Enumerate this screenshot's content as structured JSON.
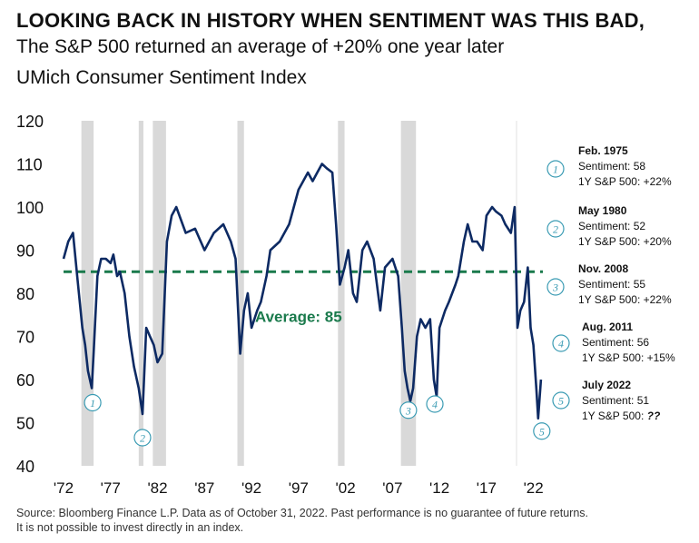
{
  "header": {
    "title": "LOOKING BACK IN HISTORY WHEN SENTIMENT WAS THIS BAD,",
    "subtitle": "The S&P 500 returned an average of +20% one year later",
    "chart_name": "UMich Consumer Sentiment Index"
  },
  "footer": {
    "source_line1": "Source: Bloomberg Finance L.P. Data as of October 31, 2022. Past performance is no guarantee of future returns.",
    "source_line2": "It is not possible to invest directly in an index."
  },
  "colors": {
    "line": "#0d2a63",
    "average": "#1a7a4c",
    "recession": "#d9d9d9",
    "marker": "#3a9bb3"
  },
  "chart_data": {
    "type": "line",
    "title": "UMich Consumer Sentiment Index",
    "ylim": [
      40,
      120
    ],
    "y_ticks": [
      40,
      50,
      60,
      70,
      80,
      90,
      100,
      110,
      120
    ],
    "x_ticks": [
      "'72",
      "'77",
      "'82",
      "'87",
      "'92",
      "'97",
      "'02",
      "'07",
      "'12",
      "'17",
      "'22"
    ],
    "x_tick_years": [
      1972,
      1977,
      1982,
      1987,
      1992,
      1997,
      2002,
      2007,
      2012,
      2017,
      2022
    ],
    "xlim": [
      1972,
      2023
    ],
    "average": {
      "value": 85,
      "label": "Average: 85"
    },
    "recessions": [
      [
        1973.9,
        1975.2
      ],
      [
        1980.0,
        1980.5
      ],
      [
        1981.5,
        1982.9
      ],
      [
        1990.5,
        1991.2
      ],
      [
        2001.2,
        2001.9
      ],
      [
        2007.9,
        2009.5
      ]
    ],
    "series": [
      {
        "x": [
          1972.0,
          1972.5,
          1973.0,
          1973.5,
          1974.0,
          1974.3,
          1974.6,
          1975.0,
          1975.2,
          1975.6,
          1976.0,
          1976.5,
          1977.0,
          1977.3,
          1977.7,
          1978.0,
          1978.5,
          1979.0,
          1979.5,
          1980.0,
          1980.4,
          1980.8,
          1981.2,
          1981.6,
          1982.0,
          1982.5,
          1983.0,
          1983.5,
          1984.0,
          1985.0,
          1986.0,
          1987.0,
          1988.0,
          1989.0,
          1989.8,
          1990.3,
          1990.8,
          1991.2,
          1991.6,
          1992.0,
          1992.6,
          1993.0,
          1993.6,
          1994.0,
          1995.0,
          1996.0,
          1997.0,
          1997.5,
          1998.0,
          1998.5,
          1999.0,
          1999.5,
          2000.0,
          2000.6,
          2001.0,
          2001.4,
          2001.9,
          2002.3,
          2002.8,
          2003.2,
          2003.8,
          2004.3,
          2005.0,
          2005.7,
          2006.2,
          2007.0,
          2007.6,
          2008.0,
          2008.3,
          2008.6,
          2008.9,
          2009.2,
          2009.6,
          2010.0,
          2010.5,
          2011.0,
          2011.4,
          2011.7,
          2012.0,
          2012.6,
          2013.0,
          2013.7,
          2014.0,
          2014.6,
          2015.0,
          2015.5,
          2016.0,
          2016.6,
          2017.0,
          2017.6,
          2018.0,
          2018.6,
          2019.0,
          2019.6,
          2020.0,
          2020.3,
          2020.6,
          2021.0,
          2021.4,
          2021.7,
          2022.0,
          2022.3,
          2022.5,
          2022.8
        ],
        "values": [
          88,
          92,
          94,
          83,
          72,
          68,
          62,
          58,
          66,
          84,
          88,
          88,
          87,
          89,
          84,
          85,
          80,
          70,
          63,
          58,
          52,
          72,
          70,
          68,
          64,
          66,
          92,
          98,
          100,
          94,
          95,
          90,
          94,
          96,
          92,
          88,
          66,
          76,
          80,
          72,
          76,
          78,
          84,
          90,
          92,
          96,
          104,
          106,
          108,
          106,
          108,
          110,
          109,
          108,
          96,
          82,
          86,
          90,
          80,
          78,
          90,
          92,
          88,
          76,
          86,
          88,
          84,
          72,
          62,
          58,
          55,
          58,
          70,
          74,
          72,
          74,
          60,
          56,
          72,
          76,
          78,
          82,
          84,
          92,
          96,
          92,
          92,
          90,
          98,
          100,
          99,
          98,
          96,
          94,
          100,
          72,
          76,
          78,
          86,
          72,
          68,
          58,
          51,
          60
        ]
      }
    ],
    "markers": [
      {
        "id": "1",
        "x": 1975.1,
        "y": 58
      },
      {
        "id": "2",
        "x": 1980.4,
        "y": 52
      },
      {
        "id": "3",
        "x": 2008.5,
        "y": 55
      },
      {
        "id": "4",
        "x": 2011.7,
        "y": 56
      },
      {
        "id": "5",
        "x": 2022.5,
        "y": 51
      }
    ]
  },
  "annotations": [
    {
      "id": "1",
      "date": "Feb. 1975",
      "sentiment": "Sentiment: 58",
      "return_label": "1Y S&P 500: +22%"
    },
    {
      "id": "2",
      "date": "May 1980",
      "sentiment": "Sentiment: 52",
      "return_label": "1Y S&P 500: +20%"
    },
    {
      "id": "3",
      "date": "Nov. 2008",
      "sentiment": "Sentiment: 55",
      "return_label": "1Y S&P 500: +22%"
    },
    {
      "id": "4",
      "date": "Aug. 2011",
      "sentiment": "Sentiment: 56",
      "return_label": "1Y S&P 500: +15%"
    },
    {
      "id": "5",
      "date": "July 2022",
      "sentiment": "Sentiment: 51",
      "return_label": "1Y S&P 500: ",
      "return_emph": "??"
    }
  ]
}
